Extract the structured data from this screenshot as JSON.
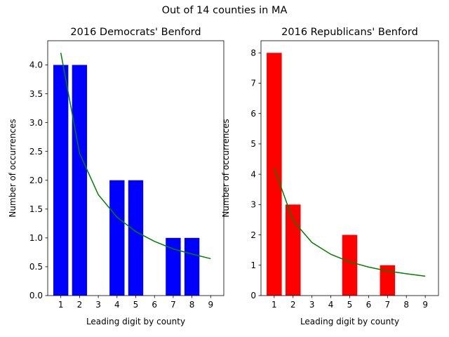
{
  "suptitle": "Out of 14 counties in MA",
  "chart_data": [
    {
      "type": "bar",
      "title": "2016 Democrats' Benford",
      "xlabel": "Leading digit by county",
      "ylabel": "Number of occurrences",
      "categories": [
        1,
        2,
        3,
        4,
        5,
        6,
        7,
        8,
        9
      ],
      "values": [
        4,
        4,
        0,
        2,
        2,
        0,
        1,
        1,
        0
      ],
      "bar_color": "#0000ff",
      "ylim": [
        0,
        4.42
      ],
      "yticks": [
        0.0,
        0.5,
        1.0,
        1.5,
        2.0,
        2.5,
        3.0,
        3.5,
        4.0
      ],
      "ytick_labels": [
        "0.0",
        "0.5",
        "1.0",
        "1.5",
        "2.0",
        "2.5",
        "3.0",
        "3.5",
        "4.0"
      ],
      "xticks": [
        1,
        2,
        3,
        4,
        5,
        6,
        7,
        8,
        9
      ],
      "benford_line": {
        "color": "#008000",
        "x": [
          1,
          2,
          3,
          4,
          5,
          6,
          7,
          8,
          9
        ],
        "y": [
          4.21,
          2.47,
          1.75,
          1.36,
          1.11,
          0.94,
          0.81,
          0.72,
          0.64
        ]
      },
      "grid": false
    },
    {
      "type": "bar",
      "title": "2016 Republicans' Benford",
      "xlabel": "Leading digit by county",
      "ylabel": "Number of occurrences",
      "categories": [
        1,
        2,
        3,
        4,
        5,
        6,
        7,
        8,
        9
      ],
      "values": [
        8,
        3,
        0,
        0,
        2,
        0,
        1,
        0,
        0
      ],
      "bar_color": "#ff0000",
      "ylim": [
        0,
        8.4
      ],
      "yticks": [
        0,
        1,
        2,
        3,
        4,
        5,
        6,
        7,
        8
      ],
      "ytick_labels": [
        "0",
        "1",
        "2",
        "3",
        "4",
        "5",
        "6",
        "7",
        "8"
      ],
      "xticks": [
        1,
        2,
        3,
        4,
        5,
        6,
        7,
        8,
        9
      ],
      "benford_line": {
        "color": "#008000",
        "x": [
          1,
          2,
          3,
          4,
          5,
          6,
          7,
          8,
          9
        ],
        "y": [
          4.21,
          2.47,
          1.75,
          1.36,
          1.11,
          0.94,
          0.81,
          0.72,
          0.64
        ]
      },
      "grid": false
    }
  ]
}
